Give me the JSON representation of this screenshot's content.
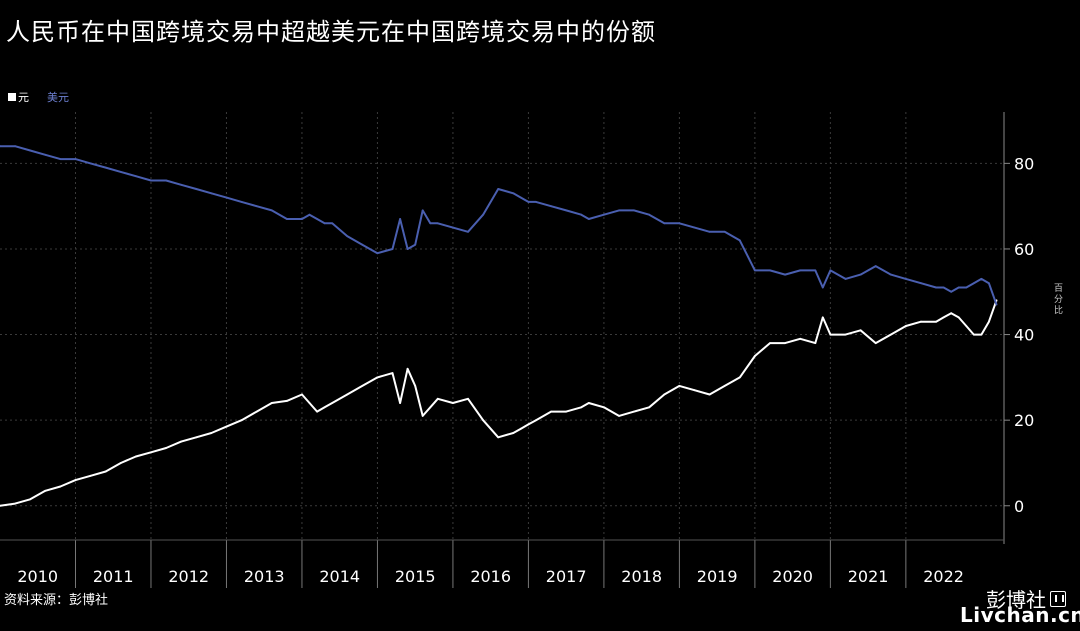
{
  "title": "人民币在中国跨境交易中超越美元在中国跨境交易中的份额",
  "source": "资料来源：彭博社",
  "brand": "彭博社",
  "watermark": "Livchan.cn",
  "colors": {
    "cny": "#ffffff",
    "usd": "#4a5fb0",
    "grid": "#3a3a3a"
  },
  "chart_data": {
    "type": "line",
    "ylabel": "百分比",
    "ylim": [
      -8,
      92
    ],
    "yticks": [
      0,
      20,
      40,
      60,
      80
    ],
    "xlim": [
      2010.0,
      2023.3
    ],
    "year_labels": [
      "2010",
      "2011",
      "2012",
      "2013",
      "2014",
      "2015",
      "2016",
      "2017",
      "2018",
      "2019",
      "2020",
      "2021",
      "2022"
    ],
    "grid": true,
    "legend_position": "top-left",
    "series": [
      {
        "name": "元",
        "color": "#ffffff",
        "x": [
          2010.0,
          2010.2,
          2010.4,
          2010.6,
          2010.8,
          2011.0,
          2011.2,
          2011.4,
          2011.6,
          2011.8,
          2012.0,
          2012.2,
          2012.4,
          2012.6,
          2012.8,
          2013.0,
          2013.2,
          2013.4,
          2013.6,
          2013.8,
          2014.0,
          2014.1,
          2014.2,
          2014.3,
          2014.4,
          2014.6,
          2014.8,
          2015.0,
          2015.2,
          2015.3,
          2015.4,
          2015.5,
          2015.6,
          2015.7,
          2015.8,
          2016.0,
          2016.2,
          2016.4,
          2016.6,
          2016.8,
          2016.9,
          2017.0,
          2017.1,
          2017.3,
          2017.5,
          2017.7,
          2017.8,
          2018.0,
          2018.2,
          2018.4,
          2018.6,
          2018.8,
          2019.0,
          2019.2,
          2019.4,
          2019.6,
          2019.8,
          2020.0,
          2020.2,
          2020.4,
          2020.6,
          2020.8,
          2020.9,
          2021.0,
          2021.2,
          2021.4,
          2021.6,
          2021.8,
          2022.0,
          2022.2,
          2022.4,
          2022.5,
          2022.6,
          2022.7,
          2022.8,
          2022.9,
          2023.0,
          2023.1,
          2023.2
        ],
        "values": [
          0,
          0.5,
          1.5,
          3.5,
          4.5,
          6,
          7,
          8,
          10,
          11.5,
          12.5,
          13.5,
          15,
          16,
          17,
          18.5,
          20,
          22,
          24,
          24.5,
          26,
          24,
          22,
          23,
          24,
          26,
          28,
          30,
          31,
          24,
          32,
          28,
          21,
          23,
          25,
          24,
          25,
          20,
          16,
          17,
          18,
          19,
          20,
          22,
          22,
          23,
          24,
          23,
          21,
          22,
          23,
          26,
          28,
          27,
          26,
          28,
          30,
          35,
          38,
          38,
          39,
          38,
          44,
          40,
          40,
          41,
          38,
          40,
          42,
          43,
          43,
          44,
          45,
          44,
          42,
          40,
          40,
          43,
          48
        ]
      },
      {
        "name": "美元",
        "color": "#4a5fb0",
        "x": [
          2010.0,
          2010.2,
          2010.4,
          2010.6,
          2010.8,
          2011.0,
          2011.2,
          2011.4,
          2011.6,
          2011.8,
          2012.0,
          2012.2,
          2012.4,
          2012.6,
          2012.8,
          2013.0,
          2013.2,
          2013.4,
          2013.6,
          2013.8,
          2014.0,
          2014.1,
          2014.2,
          2014.3,
          2014.4,
          2014.6,
          2014.8,
          2015.0,
          2015.2,
          2015.3,
          2015.4,
          2015.5,
          2015.6,
          2015.7,
          2015.8,
          2016.0,
          2016.2,
          2016.4,
          2016.6,
          2016.8,
          2016.9,
          2017.0,
          2017.1,
          2017.3,
          2017.5,
          2017.7,
          2017.8,
          2018.0,
          2018.2,
          2018.4,
          2018.6,
          2018.8,
          2019.0,
          2019.2,
          2019.4,
          2019.6,
          2019.8,
          2020.0,
          2020.2,
          2020.4,
          2020.6,
          2020.8,
          2020.9,
          2021.0,
          2021.2,
          2021.4,
          2021.6,
          2021.8,
          2022.0,
          2022.2,
          2022.4,
          2022.5,
          2022.6,
          2022.7,
          2022.8,
          2022.9,
          2023.0,
          2023.1,
          2023.2
        ],
        "values": [
          84,
          84,
          83,
          82,
          81,
          81,
          80,
          79,
          78,
          77,
          76,
          76,
          75,
          74,
          73,
          72,
          71,
          70,
          69,
          67,
          67,
          68,
          67,
          66,
          66,
          63,
          61,
          59,
          60,
          67,
          60,
          61,
          69,
          66,
          66,
          65,
          64,
          68,
          74,
          73,
          72,
          71,
          71,
          70,
          69,
          68,
          67,
          68,
          69,
          69,
          68,
          66,
          66,
          65,
          64,
          64,
          62,
          55,
          55,
          54,
          55,
          55,
          51,
          55,
          53,
          54,
          56,
          54,
          53,
          52,
          51,
          51,
          50,
          51,
          51,
          52,
          53,
          52,
          47
        ]
      }
    ]
  }
}
